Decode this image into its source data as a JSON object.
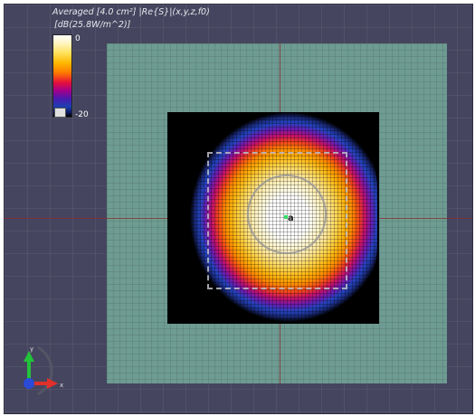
{
  "viewer": {
    "title": "Averaged [4.0 cm²] |Re{S}|(x,y,z,f0)",
    "units": "[dB(25.8W/m^2)]"
  },
  "colorbar": {
    "max_label": "0",
    "min_label": "-20",
    "colormap": [
      "#ffffff",
      "#ffe15a",
      "#ff7a00",
      "#e6103a",
      "#a2008c",
      "#1a3fb0",
      "#000000"
    ]
  },
  "marker": {
    "label": "a"
  },
  "triad": {
    "x_label": "x",
    "y_label": "y",
    "x_color": "#e0302a",
    "y_color": "#22c33a",
    "z_color": "#2a4ad8"
  },
  "colors": {
    "background": "#45455f",
    "plane": "#6e9b92"
  }
}
